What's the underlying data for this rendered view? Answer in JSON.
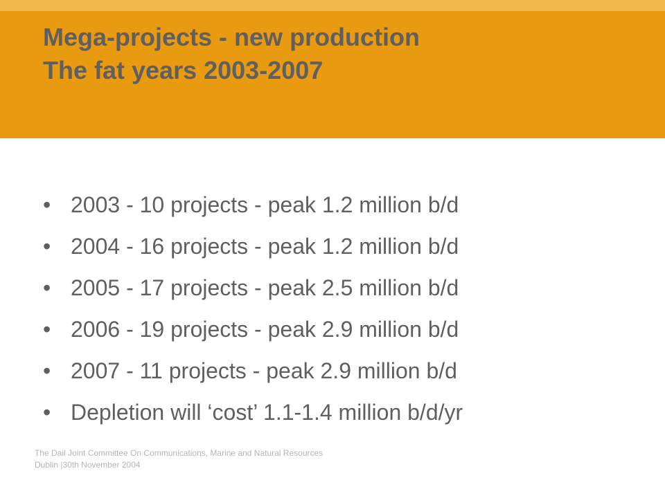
{
  "header": {
    "title_line1": "Mega-projects - new production",
    "title_line2": "The fat years 2003-2007",
    "band_color": "#e89a10",
    "strip_color": "#f2b74a"
  },
  "bullet_glyph": "•",
  "bullets": [
    "2003 - 10 projects - peak 1.2 million b/d",
    "2004 - 16 projects - peak 1.2 million b/d",
    "2005 - 17 projects - peak 2.5 million b/d",
    "2006 - 19 projects - peak 2.9 million b/d",
    "2007 - 11 projects - peak 2.9 million b/d",
    "Depletion will ‘cost’ 1.1-1.4 million b/d/yr"
  ],
  "footer": {
    "line1": "The Dail Joint Committee On Communications, Marine and Natural Resources",
    "line2": "Dublin |30th November 2004"
  }
}
